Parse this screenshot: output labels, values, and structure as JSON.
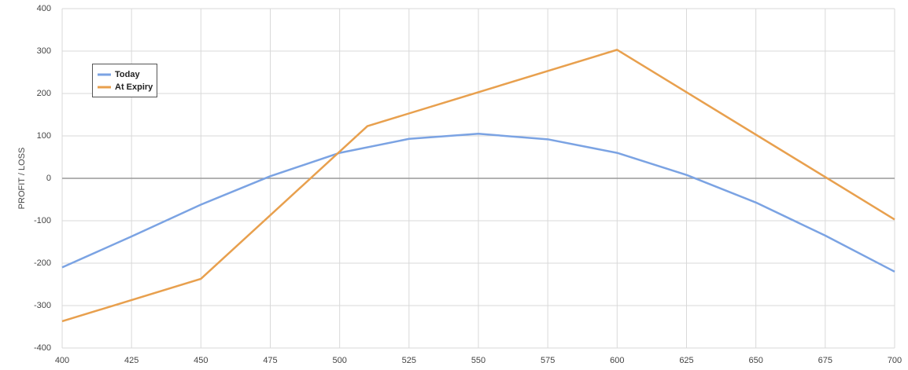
{
  "chart_data": {
    "type": "line",
    "y_label": "PROFIT / LOSS",
    "xlim": [
      400,
      700
    ],
    "xticks": [
      400,
      425,
      450,
      475,
      500,
      525,
      550,
      575,
      600,
      625,
      650,
      675,
      700
    ],
    "ylim": [
      -400,
      400
    ],
    "yticks": [
      -400,
      -300,
      -200,
      -100,
      0,
      100,
      200,
      300,
      400
    ],
    "grid": true,
    "legend": "upper-left",
    "series": [
      {
        "name": "Today",
        "color": "#7ba3e3",
        "x": [
          400,
          425,
          450,
          475,
          500,
          525,
          550,
          575,
          600,
          625,
          650,
          675,
          700
        ],
        "values": [
          -210,
          -137,
          -62,
          5,
          60,
          93,
          105,
          92,
          60,
          8,
          -57,
          -135,
          -220
        ]
      },
      {
        "name": "At Expiry",
        "color": "#e8a04e",
        "x": [
          400,
          450,
          510,
          600,
          700
        ],
        "values": [
          -337,
          -237,
          123,
          303,
          -97
        ]
      }
    ]
  }
}
